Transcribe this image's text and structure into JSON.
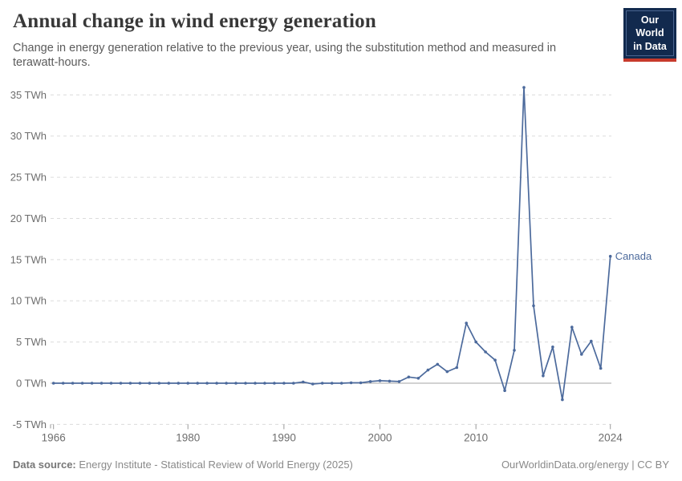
{
  "header": {
    "title": "Annual change in wind energy generation",
    "subtitle": "Change in energy generation relative to the previous year, using the substitution method and measured in terawatt-hours."
  },
  "logo": {
    "line1": "Our World",
    "line2": "in Data"
  },
  "chart_data": {
    "type": "line",
    "title": "Annual change in wind energy generation",
    "ylabel": "",
    "xlabel": "",
    "unit": "TWh",
    "grid": true,
    "ylim": [
      -5,
      36.5
    ],
    "xlim": [
      1966,
      2024
    ],
    "start_year": 1966,
    "end_year": 2024,
    "series": [
      {
        "name": "Canada",
        "color": "#4c6a9c",
        "values": [
          0,
          0,
          0,
          0,
          0,
          0,
          0,
          0,
          0,
          0,
          0,
          0,
          0,
          0,
          0,
          0,
          0,
          0,
          0,
          0,
          0,
          0,
          0,
          0,
          0,
          0,
          0.15,
          -0.1,
          0,
          0,
          0,
          0.05,
          0.05,
          0.2,
          0.3,
          0.25,
          0.2,
          0.75,
          0.6,
          1.6,
          2.3,
          1.4,
          1.9,
          7.3,
          5.0,
          3.8,
          2.8,
          -0.9,
          4.0,
          35.9,
          9.4,
          0.9,
          4.4,
          -2.0,
          6.8,
          3.5,
          5.1,
          1.8,
          15.4
        ]
      }
    ],
    "y_ticks": [
      {
        "v": -5,
        "label": "-5 TWh"
      },
      {
        "v": 0,
        "label": "0 TWh"
      },
      {
        "v": 5,
        "label": "5 TWh"
      },
      {
        "v": 10,
        "label": "10 TWh"
      },
      {
        "v": 15,
        "label": "15 TWh"
      },
      {
        "v": 20,
        "label": "20 TWh"
      },
      {
        "v": 25,
        "label": "25 TWh"
      },
      {
        "v": 30,
        "label": "30 TWh"
      },
      {
        "v": 35,
        "label": "35 TWh"
      }
    ],
    "x_ticks": [
      {
        "v": 1966,
        "label": "1966"
      },
      {
        "v": 1980,
        "label": "1980"
      },
      {
        "v": 1990,
        "label": "1990"
      },
      {
        "v": 2000,
        "label": "2000"
      },
      {
        "v": 2010,
        "label": "2010"
      },
      {
        "v": 2024,
        "label": "2024"
      }
    ],
    "legend_position": "end-of-line-label"
  },
  "footer": {
    "source_label": "Data source:",
    "source_text": " Energy Institute - Statistical Review of World Energy (2025)",
    "link_text": "OurWorldinData.org/energy | CC BY"
  },
  "colors": {
    "line": "#4c6a9c",
    "grid": "#dcdcdc",
    "zero_line": "#a6a6a6",
    "tick": "#999999",
    "axis_label": "#6e6e6e",
    "logo_bg": "#122a4e",
    "logo_red": "#c73a2c"
  }
}
